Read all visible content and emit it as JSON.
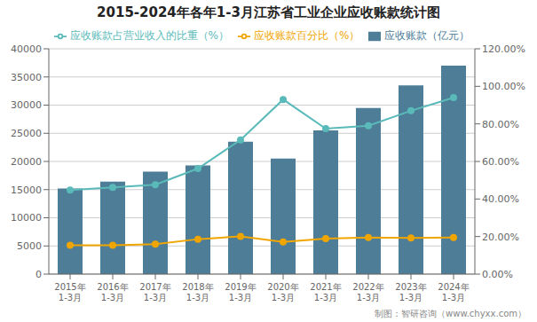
{
  "chart_data": {
    "type": "bar",
    "title": "2015-2024年各年1-3月江苏省工业企业应收账款统计图",
    "categories": [
      "2015年\n1-3月",
      "2016年\n1-3月",
      "2017年\n1-3月",
      "2018年\n1-3月",
      "2019年\n1-3月",
      "2020年\n1-3月",
      "2021年\n1-3月",
      "2022年\n1-3月",
      "2023年\n1-3月",
      "2024年\n1-3月"
    ],
    "series": [
      {
        "name": "应收账款（亿元）",
        "type": "bar",
        "color": "#4d7d97",
        "values": [
          15200,
          16400,
          18200,
          19300,
          23500,
          20500,
          25500,
          29500,
          33500,
          37000
        ]
      },
      {
        "name": "应收账款百分比（%）",
        "type": "line",
        "color": "#f0a500",
        "marker": "circle",
        "values": [
          5100,
          5100,
          5300,
          6200,
          6700,
          5700,
          6300,
          6500,
          6400,
          6500
        ]
      },
      {
        "name": "应收账款占营业收入的比重（%）",
        "type": "line",
        "color": "#5abab9",
        "marker": "circle",
        "axis": "y2",
        "values": [
          0.448,
          0.462,
          0.476,
          0.562,
          0.715,
          0.93,
          0.775,
          0.79,
          0.87,
          0.94
        ]
      }
    ],
    "ylim": [
      0,
      40000
    ],
    "yticks": [
      0,
      5000,
      10000,
      15000,
      20000,
      25000,
      30000,
      35000,
      40000
    ],
    "y2lim": [
      0,
      1.2
    ],
    "y2ticks": [
      {
        "value": 0.0,
        "label": "0.00%"
      },
      {
        "value": 0.2,
        "label": "20.00%"
      },
      {
        "value": 0.4,
        "label": "40.00%"
      },
      {
        "value": 0.6,
        "label": "60.00%"
      },
      {
        "value": 0.8,
        "label": "80.00%"
      },
      {
        "value": 1.0,
        "label": "100.00%"
      },
      {
        "value": 1.2,
        "label": "120.00%"
      }
    ],
    "grid": true,
    "legend": "top",
    "annotations": [
      "制图：智研咨询（www.chyxx.com）"
    ]
  }
}
